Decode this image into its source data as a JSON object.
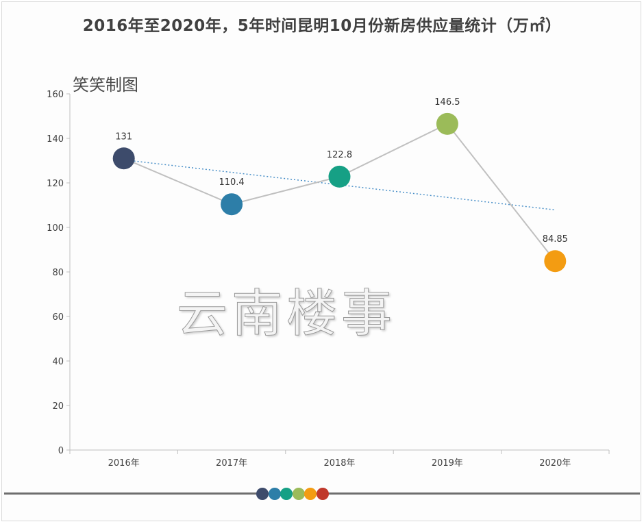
{
  "page": {
    "title": "2016年至2020年，5年时间昆明10月份新房供应量统计（万㎡）",
    "credit": "笑笑制图",
    "watermark": "云南楼事"
  },
  "chart_data": {
    "type": "line",
    "title": "2016年至2020年，5年时间昆明10月份新房供应量统计（万㎡）",
    "xlabel": "",
    "ylabel": "",
    "categories": [
      "2016年",
      "2017年",
      "2018年",
      "2019年",
      "2020年"
    ],
    "series": [
      {
        "values": [
          131,
          110.4,
          122.8,
          146.5,
          84.85
        ],
        "data_labels": [
          "131",
          "110.4",
          "122.8",
          "146.5",
          "84.85"
        ],
        "point_colors": [
          "#3d4b6b",
          "#2d7ea8",
          "#16a085",
          "#9bbb59",
          "#f39c12"
        ],
        "line_color": "#c0c0c0"
      }
    ],
    "trendline": {
      "type": "linear",
      "color": "#4a90c8",
      "style": "dotted"
    },
    "y_ticks": [
      0,
      20,
      40,
      60,
      80,
      100,
      120,
      140,
      160
    ],
    "ylim": [
      0,
      160
    ],
    "grid": false,
    "legend": "none"
  },
  "footer": {
    "dot_colors": [
      "#3d4b6b",
      "#2d7ea8",
      "#16a085",
      "#9bbb59",
      "#f39c12",
      "#c0392b"
    ],
    "line_color": "#6e6e6e"
  }
}
